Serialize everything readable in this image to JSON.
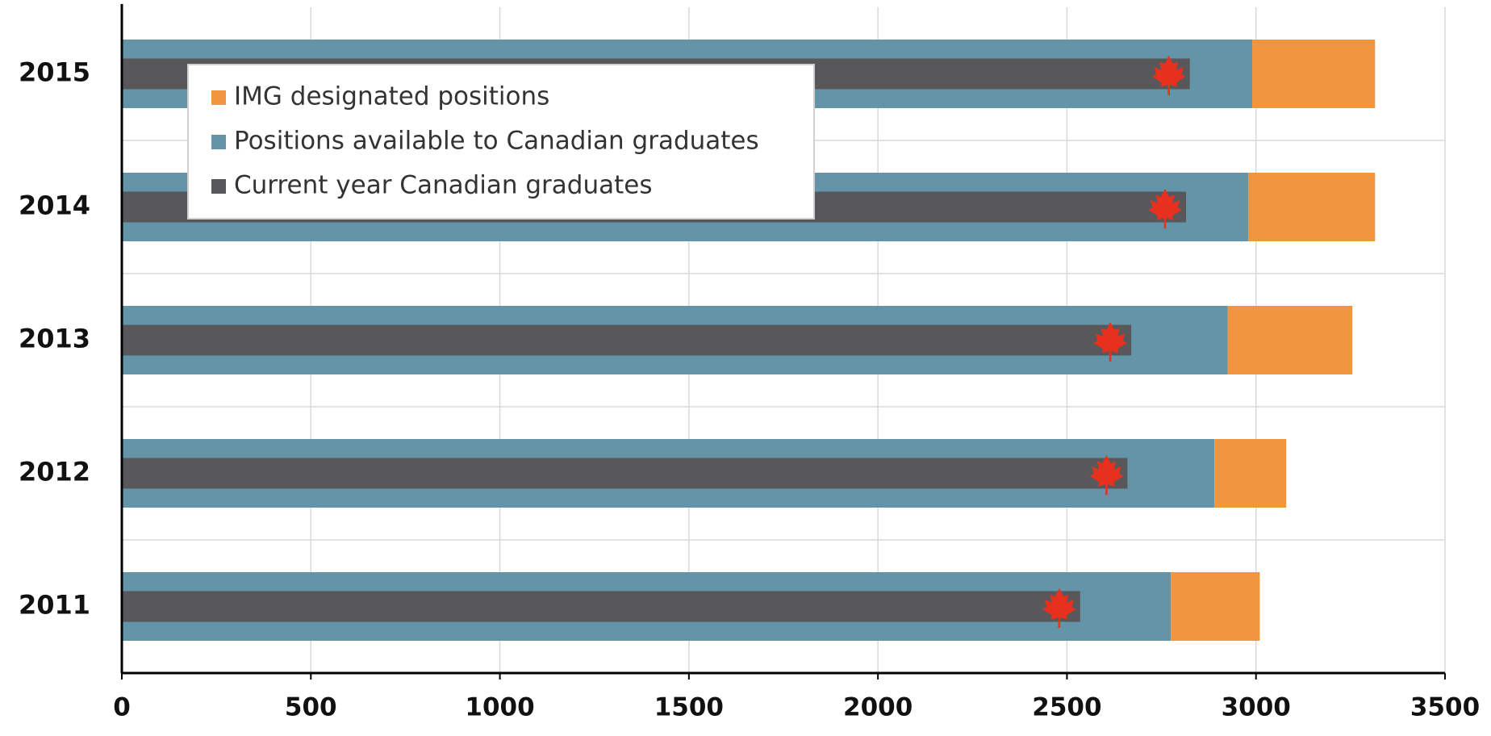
{
  "chart_data": {
    "type": "bar",
    "orientation": "horizontal",
    "categories": [
      "2015",
      "2014",
      "2013",
      "2012",
      "2011"
    ],
    "series": [
      {
        "name": "IMG designated positions",
        "color": "#f0963f",
        "values": [
          325,
          335,
          330,
          190,
          235
        ]
      },
      {
        "name": "Positions available to Canadian graduates",
        "color": "#6494a8",
        "values": [
          2990,
          2980,
          2925,
          2890,
          2775
        ]
      },
      {
        "name": "Current year Canadian graduates",
        "color": "#58585a",
        "values": [
          2825,
          2815,
          2670,
          2660,
          2535
        ]
      }
    ],
    "xlim": [
      0,
      3500
    ],
    "xticks": [
      0,
      500,
      1000,
      1500,
      2000,
      2500,
      3000,
      3500
    ],
    "grid": true,
    "legend": "top-left"
  }
}
